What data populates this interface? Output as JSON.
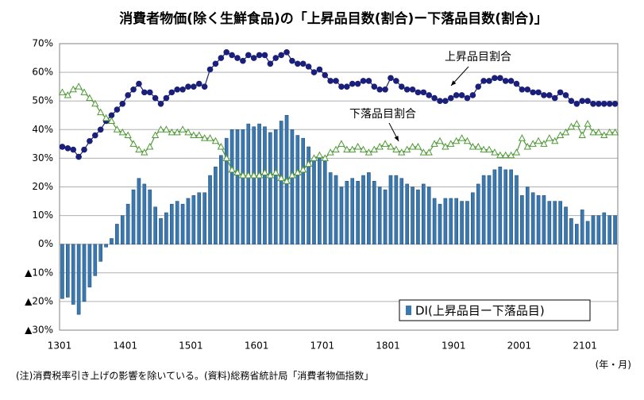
{
  "chart_data": {
    "type": "bar_line",
    "title": "消費者物価(除く生鮮食品)の「上昇品目数(割合)ー下落品目数(割合)」",
    "categories": [
      "1301",
      null,
      null,
      null,
      null,
      null,
      null,
      null,
      null,
      null,
      null,
      null,
      "1401",
      null,
      null,
      null,
      null,
      null,
      null,
      null,
      null,
      null,
      null,
      null,
      "1501",
      null,
      null,
      null,
      null,
      null,
      null,
      null,
      null,
      null,
      null,
      null,
      "1601",
      null,
      null,
      null,
      null,
      null,
      null,
      null,
      null,
      null,
      null,
      null,
      "1701",
      null,
      null,
      null,
      null,
      null,
      null,
      null,
      null,
      null,
      null,
      null,
      "1801",
      null,
      null,
      null,
      null,
      null,
      null,
      null,
      null,
      null,
      null,
      null,
      "1901",
      null,
      null,
      null,
      null,
      null,
      null,
      null,
      null,
      null,
      null,
      null,
      "2001",
      null,
      null,
      null,
      null,
      null,
      null,
      null,
      null,
      null,
      null,
      null,
      "2101",
      null,
      null,
      null,
      null,
      null
    ],
    "series": [
      {
        "name": "DI(上昇品目ー下落品目)",
        "kind": "bar",
        "color": "#3a78b0",
        "values": [
          -19,
          -18.5,
          -21,
          -24.5,
          -20,
          -15,
          -11,
          -6,
          -1,
          2,
          7,
          10,
          14,
          19,
          23,
          21,
          19,
          13,
          9,
          11,
          14,
          15,
          14,
          16,
          17,
          18,
          18,
          24,
          27,
          31,
          37,
          40,
          40,
          40,
          42,
          41,
          42,
          41,
          39,
          40,
          43,
          45,
          40,
          38,
          37,
          34,
          30,
          30,
          29,
          25,
          24,
          20,
          22,
          23,
          22,
          24,
          25,
          22,
          20,
          19,
          24,
          24,
          23,
          21,
          20,
          19,
          21,
          20,
          16,
          14,
          16,
          16,
          16,
          15,
          15,
          18,
          21,
          24,
          24,
          26,
          27,
          26,
          26,
          24,
          17,
          20,
          18,
          17,
          17,
          15,
          15,
          15,
          13,
          9,
          7,
          12,
          8,
          10,
          10,
          11,
          10,
          10
        ]
      },
      {
        "name": "上昇品目割合",
        "kind": "line",
        "marker": "circle",
        "color": "#1a1f7a",
        "values": [
          34,
          33.5,
          33,
          30.5,
          33,
          36,
          38,
          40,
          43,
          45,
          47,
          49,
          52,
          54,
          56,
          53,
          53,
          51,
          49,
          51,
          53,
          54,
          54,
          55,
          55,
          56,
          55,
          61,
          63,
          65,
          67,
          66,
          65,
          64,
          66,
          65,
          66,
          66,
          63,
          65,
          66,
          67,
          64,
          63,
          63,
          62,
          60,
          61,
          59,
          57,
          57,
          55,
          55,
          56,
          56,
          57,
          57,
          55,
          54,
          54,
          58,
          57,
          55,
          54,
          54,
          53,
          53,
          52,
          51,
          50,
          50,
          51,
          52,
          52,
          51,
          52,
          55,
          57,
          57,
          58,
          58,
          57,
          57,
          56,
          54,
          54,
          53,
          53,
          52,
          52,
          51,
          53,
          52,
          50,
          49,
          50,
          50,
          49,
          49,
          49,
          49,
          49
        ]
      },
      {
        "name": "下落品目割合",
        "kind": "line",
        "marker": "triangle",
        "color": "#4f9a36",
        "values": [
          53,
          52,
          54,
          55,
          53,
          51,
          49,
          46,
          44,
          43,
          40,
          39,
          38,
          35,
          33,
          32,
          34,
          38,
          40,
          40,
          39,
          39,
          40,
          39,
          38,
          38,
          37,
          37,
          36,
          34,
          30,
          26,
          25,
          24,
          24,
          24,
          24,
          25,
          24,
          25,
          23,
          22,
          24,
          25,
          26,
          28,
          30,
          31,
          30,
          32,
          33,
          35,
          33,
          33,
          34,
          33,
          32,
          33,
          34,
          35,
          34,
          33,
          32,
          33,
          34,
          34,
          32,
          32,
          35,
          36,
          34,
          35,
          36,
          37,
          36,
          34,
          34,
          33,
          33,
          32,
          31,
          31,
          31,
          32,
          37,
          34,
          35,
          36,
          35,
          37,
          36,
          38,
          39,
          41,
          42,
          38,
          42,
          39,
          39,
          38,
          39,
          39
        ]
      }
    ],
    "ylim": [
      -30,
      70
    ],
    "yticks": [
      {
        "value": -30,
        "label": "▲30%"
      },
      {
        "value": -20,
        "label": "▲20%"
      },
      {
        "value": -10,
        "label": "▲10%"
      },
      {
        "value": 0,
        "label": "0%"
      },
      {
        "value": 10,
        "label": "10%"
      },
      {
        "value": 20,
        "label": "20%"
      },
      {
        "value": 30,
        "label": "30%"
      },
      {
        "value": 40,
        "label": "40%"
      },
      {
        "value": 50,
        "label": "50%"
      },
      {
        "value": 60,
        "label": "60%"
      },
      {
        "value": 70,
        "label": "70%"
      }
    ],
    "grid": true,
    "legend": "lower right",
    "x_unit": "(年・月)",
    "note": "(注)消費税率引き上げの影響を除いている。(資料)総務省統計局「消費者物価指数」"
  }
}
